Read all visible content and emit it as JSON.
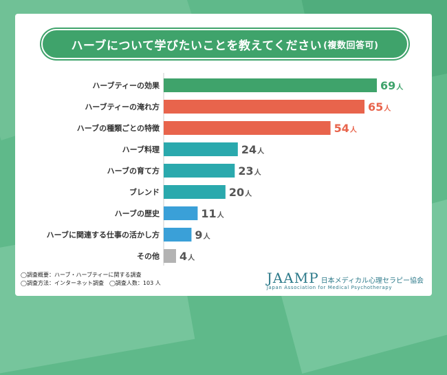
{
  "chart_data": {
    "type": "bar",
    "orientation": "horizontal",
    "title": "ハーブについて学びたいことを教えてください",
    "title_note": "(複数回答可)",
    "unit": "人",
    "categories": [
      "ハーブティーの効果",
      "ハーブティーの淹れ方",
      "ハーブの種類ごとの特徴",
      "ハーブ料理",
      "ハーブの育て方",
      "ブレンド",
      "ハーブの歴史",
      "ハーブに関連する仕事の活かし方",
      "その他"
    ],
    "values": [
      69,
      65,
      54,
      24,
      23,
      20,
      11,
      9,
      4
    ],
    "bar_colors": [
      "#3fa36b",
      "#e8644c",
      "#e8644c",
      "#2aa9ad",
      "#2aa9ad",
      "#2aa9ad",
      "#3aa0d8",
      "#3aa0d8",
      "#b3b3b3"
    ],
    "label_colors": [
      "#3fa36b",
      "#e8644c",
      "#e8644c",
      "#555555",
      "#555555",
      "#555555",
      "#555555",
      "#555555",
      "#555555"
    ],
    "xlim": [
      0,
      69
    ]
  },
  "footer": {
    "note1": "◯調査概要：ハーブ・ハーブティーに関する調査",
    "note2": "◯調査方法：インターネット調査　◯調査人数：103 人"
  },
  "logo": {
    "main": "JAAMP",
    "jp": "日本メディカル心理セラピー協会",
    "en": "Japan Association for Medical Psychotherapy"
  }
}
